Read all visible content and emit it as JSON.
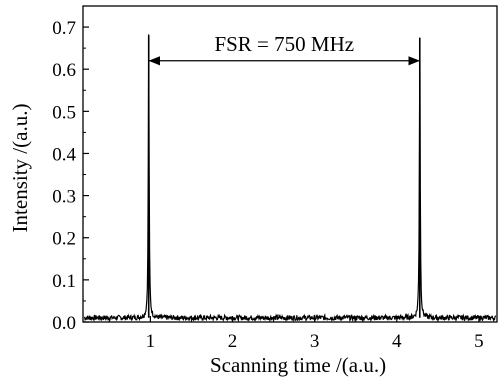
{
  "chart_data": {
    "type": "line",
    "title": "",
    "xlabel": "Scanning time /(a.u.)",
    "ylabel": "Intensity /(a.u.)",
    "xlim": [
      0.18,
      5.22
    ],
    "ylim": [
      0.0,
      0.75
    ],
    "x_ticks": [
      1,
      2,
      3,
      4,
      5
    ],
    "y_ticks": [
      0.0,
      0.1,
      0.2,
      0.3,
      0.4,
      0.5,
      0.6,
      0.7
    ],
    "x_tick_labels": [
      "1",
      "2",
      "3",
      "4",
      "5"
    ],
    "y_tick_labels": [
      "0.0",
      "0.1",
      "0.2",
      "0.3",
      "0.4",
      "0.5",
      "0.6",
      "0.7"
    ],
    "grid": false,
    "legend": "none",
    "baseline_level": 0.01,
    "series": [
      {
        "peaks": [
          {
            "x": 0.98,
            "y": 0.68
          },
          {
            "x": 4.28,
            "y": 0.675
          }
        ]
      }
    ],
    "annotations": [
      {
        "text": "FSR = 750 MHz",
        "arrow_from_x": 0.98,
        "arrow_to_x": 4.28,
        "arrow_y": 0.62,
        "text_y": 0.66
      }
    ],
    "colors": {
      "line": "#000000",
      "axes": "#000000"
    }
  }
}
